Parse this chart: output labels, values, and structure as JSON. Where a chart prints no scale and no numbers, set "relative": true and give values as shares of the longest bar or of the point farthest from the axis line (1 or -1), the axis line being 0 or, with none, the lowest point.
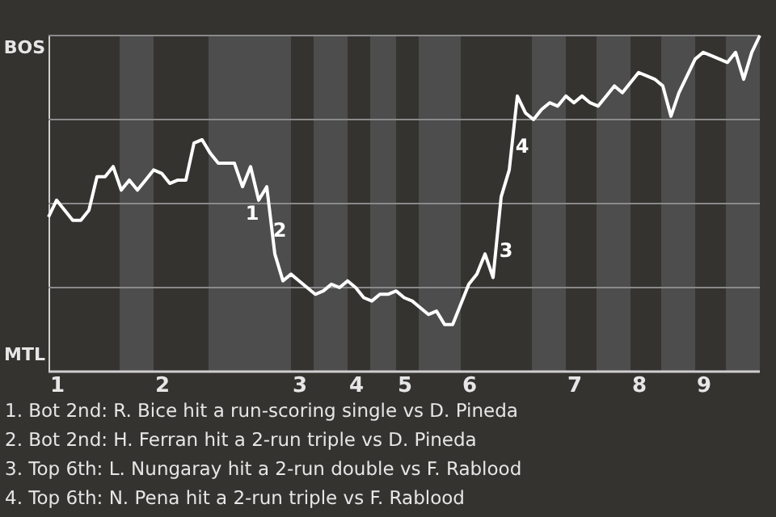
{
  "chart_data": {
    "type": "line",
    "relative": true,
    "categories": [
      null,
      "1",
      null,
      null,
      null,
      null,
      null,
      null,
      null,
      null,
      null,
      null,
      null,
      null,
      "2",
      null,
      null,
      null,
      null,
      null,
      null,
      null,
      null,
      null,
      null,
      null,
      null,
      null,
      null,
      null,
      null,
      "3",
      null,
      null,
      null,
      null,
      null,
      null,
      "4",
      null,
      null,
      null,
      null,
      null,
      "5",
      null,
      null,
      null,
      null,
      null,
      null,
      null,
      "6",
      null,
      null,
      null,
      null,
      null,
      null,
      null,
      null,
      null,
      null,
      null,
      null,
      "7",
      null,
      null,
      null,
      null,
      null,
      null,
      null,
      "8",
      null,
      null,
      null,
      null,
      null,
      null,
      null,
      "9",
      null,
      null,
      null,
      null,
      null,
      null,
      null
    ],
    "series": [
      {
        "color": "#ffffff",
        "values": [
          0.46,
          0.51,
          0.48,
          0.45,
          0.45,
          0.48,
          0.58,
          0.58,
          0.61,
          0.54,
          0.57,
          0.54,
          0.57,
          0.6,
          0.59,
          0.56,
          0.57,
          0.57,
          0.68,
          0.69,
          0.65,
          0.62,
          0.62,
          0.62,
          0.55,
          0.61,
          0.51,
          0.55,
          0.35,
          0.27,
          0.29,
          0.27,
          0.25,
          0.23,
          0.24,
          0.26,
          0.25,
          0.27,
          0.25,
          0.22,
          0.21,
          0.23,
          0.23,
          0.24,
          0.22,
          0.21,
          0.19,
          0.17,
          0.18,
          0.14,
          0.14,
          0.2,
          0.26,
          0.29,
          0.35,
          0.28,
          0.52,
          0.6,
          0.82,
          0.77,
          0.75,
          0.78,
          0.8,
          0.79,
          0.82,
          0.8,
          0.82,
          0.8,
          0.79,
          0.82,
          0.85,
          0.83,
          0.86,
          0.89,
          0.88,
          0.87,
          0.85,
          0.76,
          0.83,
          0.88,
          0.93,
          0.95,
          0.94,
          0.93,
          0.92,
          0.95,
          0.87,
          0.95,
          1.0
        ]
      }
    ],
    "grid": "y",
    "marker": "none",
    "line_style": "solid",
    "annotations": [
      "BOS",
      "MTL",
      "1",
      "2",
      "3",
      "4",
      "1. Bot 2nd: R. Bice hit a run-scoring single vs D. Pineda",
      "2. Bot 2nd: H. Ferran hit a 2-run triple vs D. Pineda",
      "3. Top 6th: L. Nungaray hit a 2-run double vs F. Rablood",
      "4. Top 6th: N. Pena hit a 2-run triple vs F. Rablood"
    ]
  }
}
